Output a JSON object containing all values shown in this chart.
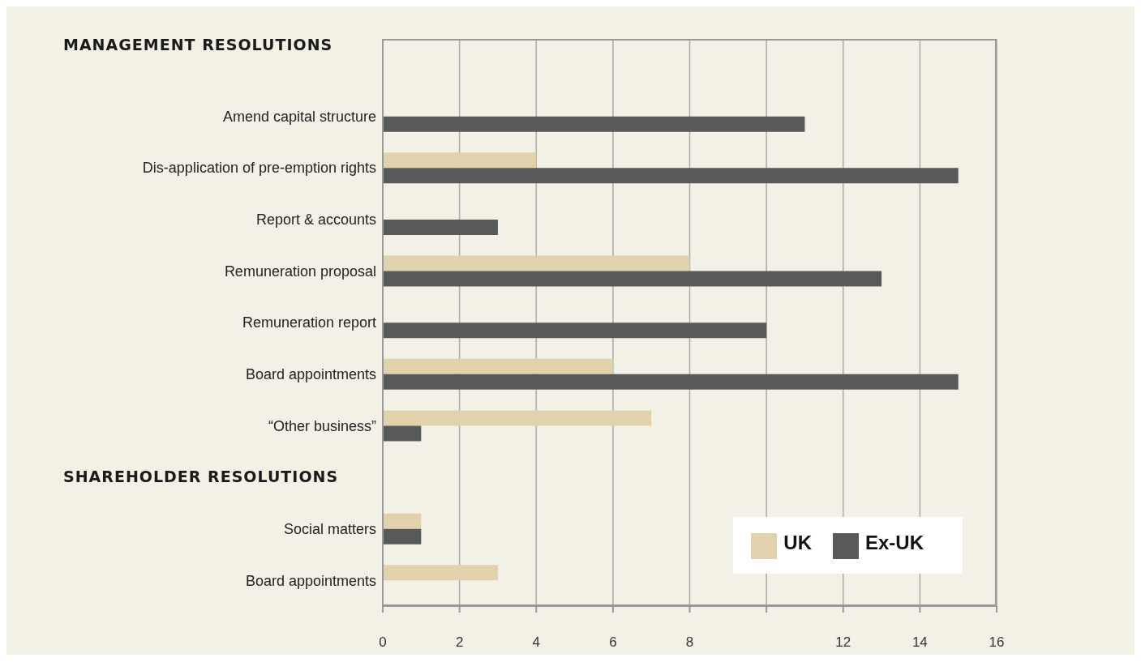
{
  "chart_data": {
    "type": "bar",
    "orientation": "horizontal",
    "categories": [
      null,
      "Amend capital structure",
      "Dis-application of pre-emption rights",
      "Report & accounts",
      "Remuneration proposal",
      "Remuneration report",
      "Board appointments",
      "“Other business”",
      null,
      "Social matters",
      "Board appointments"
    ],
    "series": [
      {
        "name": "UK",
        "color": "#e1d1ac",
        "values": [
          null,
          null,
          4,
          null,
          8,
          null,
          6,
          7,
          null,
          1,
          3
        ]
      },
      {
        "name": "Ex-UK",
        "color": "#58595b",
        "values": [
          null,
          11,
          15,
          3,
          13,
          10,
          15,
          1,
          null,
          1,
          null
        ]
      }
    ],
    "xlim": [
      0,
      16
    ],
    "xticks": [
      0,
      2,
      4,
      6,
      8,
      {
        "value": 10,
        "label": null
      },
      12,
      14,
      16
    ],
    "annotations": [
      "MANAGEMENT RESOLUTIONS",
      "SHAREHOLDER RESOLUTIONS"
    ],
    "grid": "x",
    "legend": "bottom right"
  }
}
